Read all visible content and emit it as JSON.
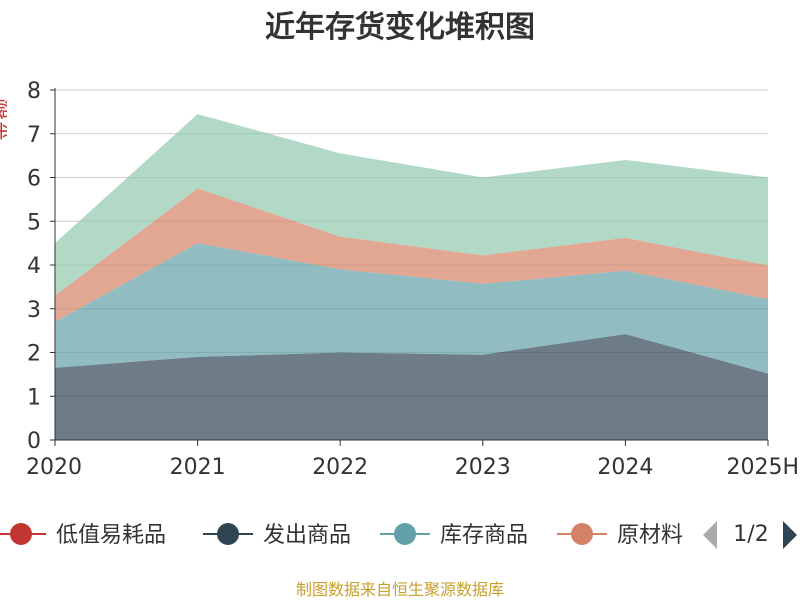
{
  "chart_data": {
    "type": "area",
    "stacked": true,
    "title": "近年存货变化堆积图",
    "ylabel": "金额",
    "ylim": [
      0,
      8
    ],
    "yticks": [
      0,
      1,
      2,
      3,
      4,
      5,
      6,
      7,
      8
    ],
    "grid": true,
    "categories": [
      "2020",
      "2021",
      "2022",
      "2023",
      "2024",
      "2025H"
    ],
    "series": [
      {
        "name": "发出商品",
        "color": "#2f4554",
        "values": [
          1.65,
          1.9,
          2.0,
          1.95,
          2.42,
          1.52
        ]
      },
      {
        "name": "库存商品",
        "color": "#61a0a8",
        "values": [
          1.05,
          2.6,
          1.9,
          1.62,
          1.45,
          1.7
        ]
      },
      {
        "name": "原材料",
        "color": "#d48265",
        "values": [
          0.6,
          1.25,
          0.75,
          0.65,
          0.75,
          0.77
        ]
      },
      {
        "name": "",
        "color": "#91c7ae",
        "values": [
          1.2,
          1.7,
          1.9,
          1.78,
          1.78,
          2.01
        ]
      }
    ],
    "legend": {
      "position": "bottom",
      "items": [
        {
          "name": "低值易耗品",
          "color": "#c23531"
        },
        {
          "name": "发出商品",
          "color": "#2f4554"
        },
        {
          "name": "库存商品",
          "color": "#61a0a8"
        },
        {
          "name": "原材料",
          "color": "#d48265"
        }
      ],
      "page": "1/2"
    },
    "source": "制图数据来自恒生聚源数据库"
  }
}
